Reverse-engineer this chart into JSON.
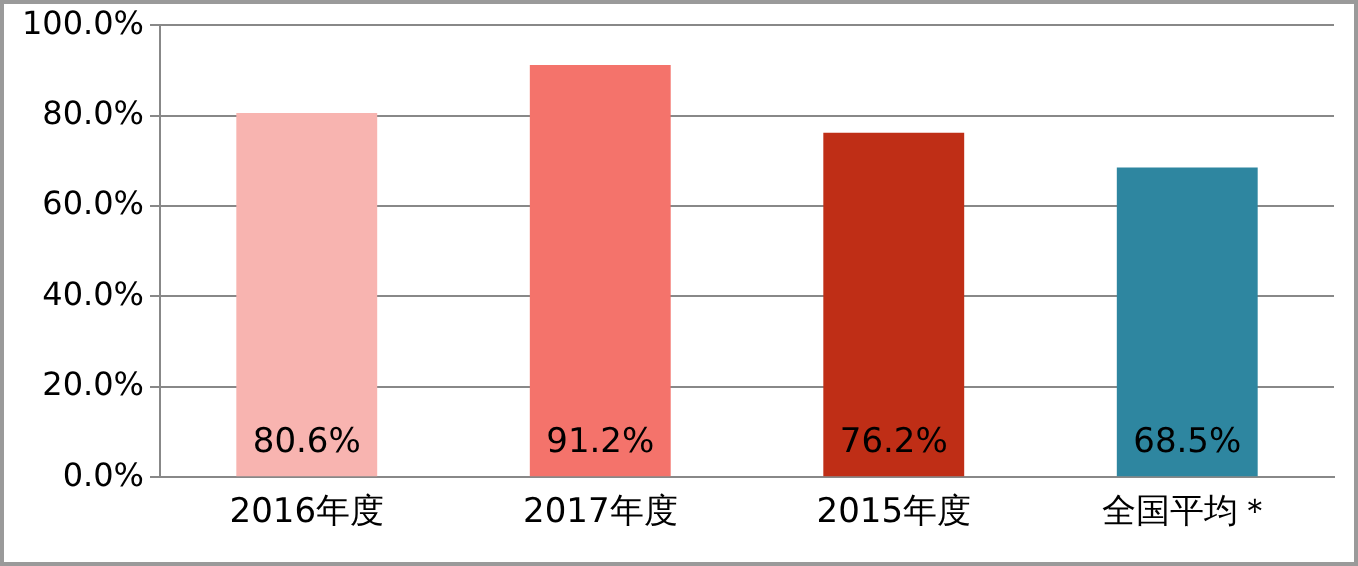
{
  "chart_data": {
    "type": "bar",
    "categories": [
      "2016年度",
      "2017年度",
      "2015年度",
      "全国平均＊"
    ],
    "values": [
      80.6,
      91.2,
      76.2,
      68.5
    ],
    "colors": [
      "#f8b4b0",
      "#f4736b",
      "#bf2e16",
      "#2e86a0"
    ],
    "value_labels": [
      "80.6%",
      "91.2%",
      "76.2%",
      "68.5%"
    ],
    "ylim": [
      0,
      100
    ],
    "yticks": [
      {
        "value": 0,
        "label": "0.0%"
      },
      {
        "value": 20,
        "label": "20.0%"
      },
      {
        "value": 40,
        "label": "40.0%"
      },
      {
        "value": 60,
        "label": "60.0%"
      },
      {
        "value": 80,
        "label": "80.0%"
      },
      {
        "value": 100,
        "label": "100.0%"
      }
    ],
    "grid": "y",
    "legend": false
  }
}
